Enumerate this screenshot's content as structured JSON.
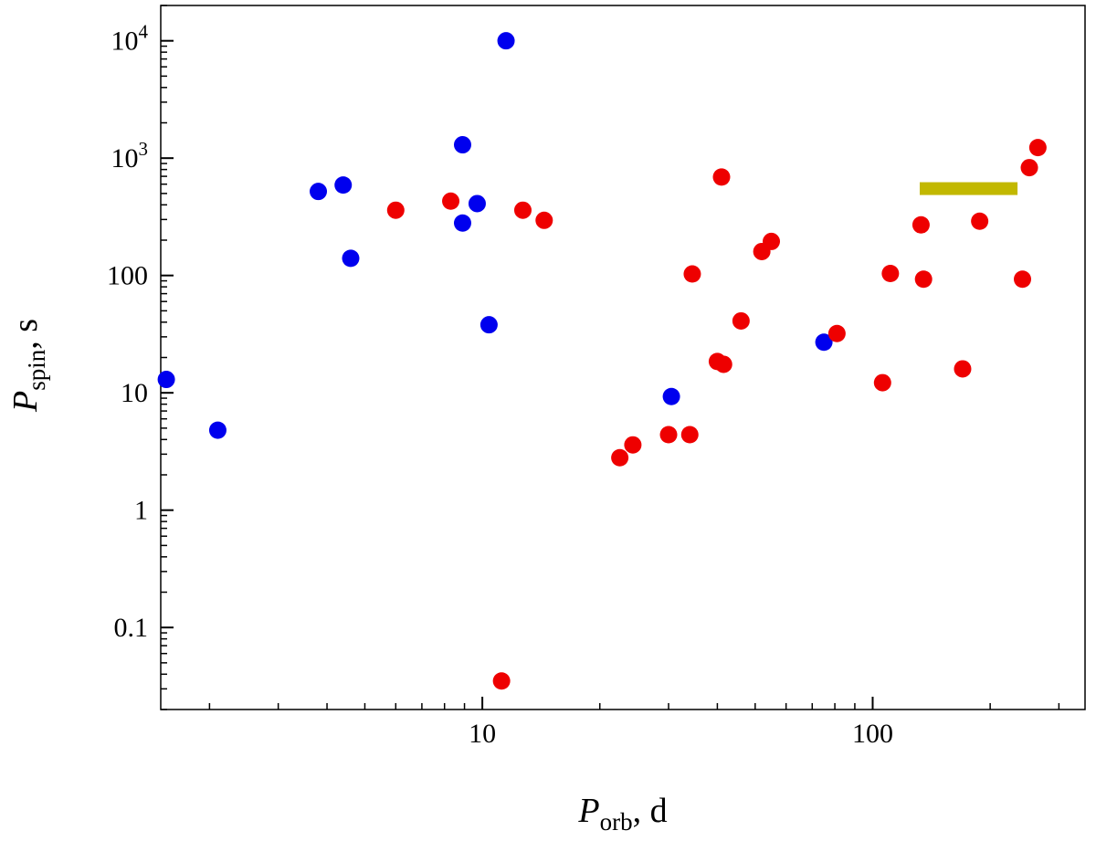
{
  "chart_data": {
    "type": "scatter",
    "title": "",
    "xscale": "log",
    "yscale": "log",
    "xlim": [
      1.5,
      350
    ],
    "ylim": [
      0.02,
      20000
    ],
    "xlabel": {
      "main": "P",
      "sub": "orb",
      "unit": ", d"
    },
    "ylabel": {
      "main": "P",
      "sub": "spin",
      "unit": ", s"
    },
    "x_ticks": [
      {
        "value": 10,
        "label": "10"
      },
      {
        "value": 100,
        "label": "100"
      }
    ],
    "y_ticks": [
      {
        "value": 0.1,
        "label": "0.1"
      },
      {
        "value": 1,
        "label": "1"
      },
      {
        "value": 10,
        "label": "10"
      },
      {
        "value": 100,
        "label": "100"
      },
      {
        "value": 1000,
        "base": "10",
        "exp": "3"
      },
      {
        "value": 10000,
        "base": "10",
        "exp": "4"
      }
    ],
    "series": [
      {
        "name": "blue",
        "color": "#0000ee",
        "points": [
          {
            "x": 1.55,
            "y": 13
          },
          {
            "x": 2.1,
            "y": 4.8
          },
          {
            "x": 3.8,
            "y": 520
          },
          {
            "x": 4.4,
            "y": 590
          },
          {
            "x": 4.6,
            "y": 140
          },
          {
            "x": 8.9,
            "y": 1300
          },
          {
            "x": 8.9,
            "y": 280
          },
          {
            "x": 9.7,
            "y": 410
          },
          {
            "x": 10.4,
            "y": 38
          },
          {
            "x": 11.5,
            "y": 10000
          },
          {
            "x": 30.5,
            "y": 9.3
          },
          {
            "x": 75,
            "y": 27
          }
        ]
      },
      {
        "name": "red",
        "color": "#ee0000",
        "points": [
          {
            "x": 6.0,
            "y": 360
          },
          {
            "x": 8.3,
            "y": 430
          },
          {
            "x": 11.2,
            "y": 0.035
          },
          {
            "x": 12.7,
            "y": 360
          },
          {
            "x": 14.4,
            "y": 295
          },
          {
            "x": 22.5,
            "y": 2.8
          },
          {
            "x": 24.3,
            "y": 3.6
          },
          {
            "x": 30.0,
            "y": 4.4
          },
          {
            "x": 34.0,
            "y": 4.4
          },
          {
            "x": 34.5,
            "y": 103
          },
          {
            "x": 40.0,
            "y": 18.5
          },
          {
            "x": 41.5,
            "y": 17.5
          },
          {
            "x": 41.0,
            "y": 690
          },
          {
            "x": 46.0,
            "y": 41
          },
          {
            "x": 52.0,
            "y": 160
          },
          {
            "x": 55.0,
            "y": 195
          },
          {
            "x": 81.0,
            "y": 32
          },
          {
            "x": 106.0,
            "y": 12.2
          },
          {
            "x": 111.0,
            "y": 104
          },
          {
            "x": 133.0,
            "y": 270
          },
          {
            "x": 135.0,
            "y": 93
          },
          {
            "x": 170.0,
            "y": 16
          },
          {
            "x": 188.0,
            "y": 290
          },
          {
            "x": 242.0,
            "y": 93
          },
          {
            "x": 252.0,
            "y": 830
          },
          {
            "x": 265.0,
            "y": 1230
          }
        ]
      }
    ],
    "annotations": [
      {
        "type": "range-bar",
        "color": "#c2b800",
        "x_range": [
          132,
          235
        ],
        "y": 550
      }
    ]
  }
}
